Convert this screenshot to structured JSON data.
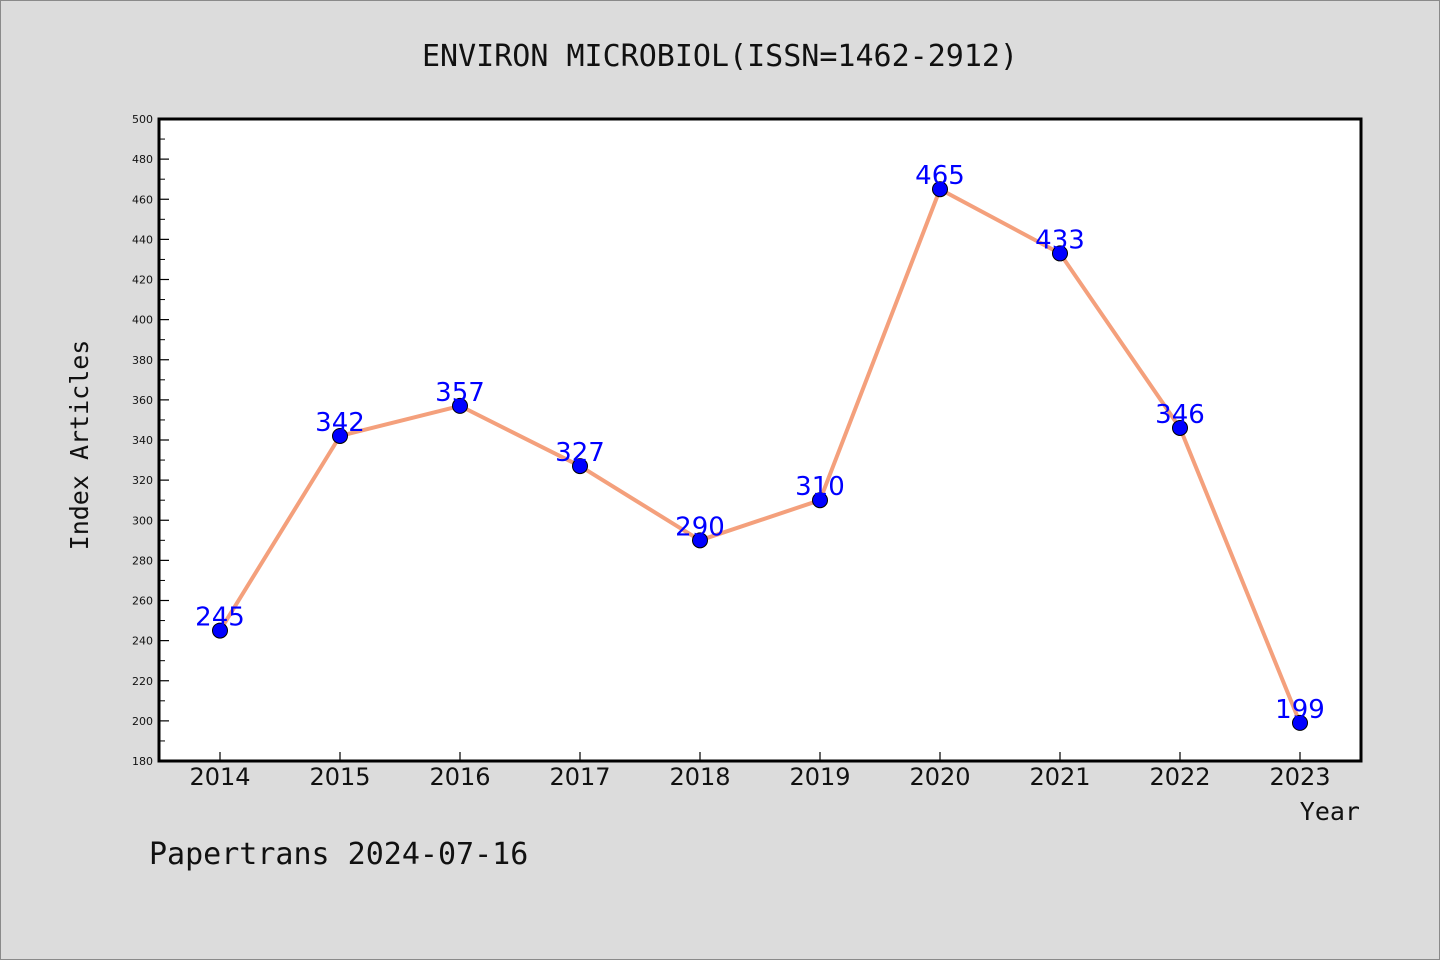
{
  "chart_data": {
    "type": "line",
    "title": "ENVIRON MICROBIOL(ISSN=1462-2912)",
    "xlabel": "Year",
    "ylabel": "Index Articles",
    "categories": [
      "2014",
      "2015",
      "2016",
      "2017",
      "2018",
      "2019",
      "2020",
      "2021",
      "2022",
      "2023"
    ],
    "series": [
      {
        "values": [
          245,
          342,
          357,
          327,
          290,
          310,
          465,
          433,
          346,
          199
        ]
      }
    ],
    "ylim": [
      180,
      500
    ],
    "yticks": [
      180,
      200,
      220,
      240,
      260,
      280,
      300,
      320,
      340,
      360,
      380,
      400,
      420,
      440,
      460,
      480,
      500
    ],
    "grid": false,
    "line_color": "#f4a07c",
    "marker_color": "#0000ff",
    "label_color": "#0000ff",
    "background_color": "#dcdcdc",
    "plot_background_color": "#ffffff"
  },
  "footer": {
    "text": "Papertrans 2024-07-16"
  }
}
